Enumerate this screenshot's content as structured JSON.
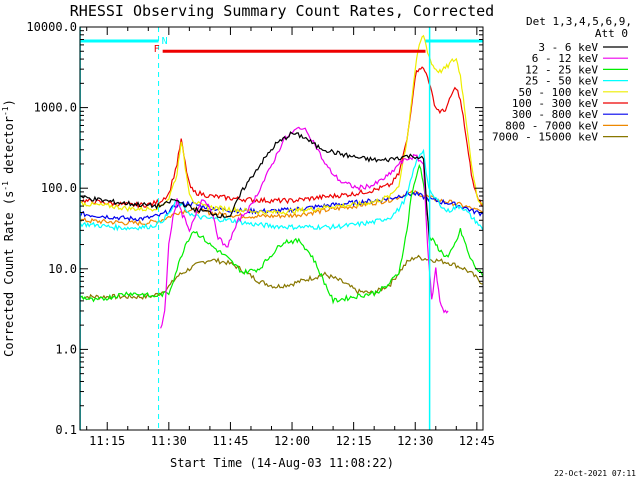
{
  "chart_data": {
    "type": "line",
    "title": "RHESSI Observing Summary Count Rates, Corrected",
    "xlabel": "Start Time (14-Aug-03 11:08:22)",
    "ylabel_prefix": "Corrected Count Rate (s",
    "ylabel_exp1": "-1",
    "ylabel_mid": " detector",
    "ylabel_exp2": "-1",
    "ylabel_suffix": ")",
    "x_range_min": [
      8.37,
      106.5
    ],
    "y_range": [
      0.1,
      10000
    ],
    "y_scale": "log",
    "x_tick_labels": [
      "11:15",
      "11:30",
      "11:45",
      "12:00",
      "12:15",
      "12:30",
      "12:45"
    ],
    "x_tick_values_min": [
      15,
      30,
      45,
      60,
      75,
      90,
      105
    ],
    "y_tick_labels": [
      "0.1",
      "1.0",
      "10.0",
      "100.0",
      "1000.0",
      "10000.0"
    ],
    "y_tick_values": [
      0.1,
      1,
      10,
      100,
      1000,
      10000
    ],
    "legend_header": [
      "Det 1,3,4,5,6,9,",
      "Att 0"
    ],
    "legend_position": "top-right outside plot",
    "timestamp": "22-Oct-2021 07:11",
    "flags": {
      "color": "#00ffff",
      "label_N": "N",
      "label_F": "F",
      "night_segments_min": [
        [
          8.4,
          27.5
        ],
        [
          92.5,
          106.5
        ]
      ],
      "dashed_lines_min": [
        27.5,
        106.5
      ],
      "solid_lines_min": [
        8.4,
        93.5
      ],
      "flare_segment_min": [
        28.5,
        92.5
      ],
      "flare_color": "#ee0000",
      "flare_level": 5000
    },
    "series": [
      {
        "name": "3 - 6 keV",
        "color": "#000000",
        "t": [
          8.5,
          12,
          18,
          24,
          27,
          29,
          31,
          33,
          36,
          40,
          43,
          45,
          48,
          52,
          56,
          60,
          63,
          66,
          70,
          74,
          78,
          82,
          86,
          88,
          90,
          92,
          93.5
        ],
        "v": [
          78,
          73,
          66,
          62,
          60,
          62,
          72,
          66,
          55,
          50,
          45,
          46,
          95,
          190,
          350,
          480,
          430,
          330,
          280,
          250,
          230,
          220,
          240,
          250,
          250,
          230,
          20
        ]
      },
      {
        "name": "6 - 12 keV",
        "color": "#ee00ee",
        "t": [
          28,
          29,
          30,
          31,
          32,
          33,
          34,
          35,
          36,
          38,
          40,
          42,
          44,
          47,
          50,
          54,
          58,
          62,
          64,
          66,
          68,
          70,
          72,
          76,
          80,
          84,
          86,
          88,
          90,
          92,
          93,
          94,
          95,
          96,
          97,
          98
        ],
        "v": [
          1.8,
          3,
          20,
          45,
          70,
          50,
          40,
          28,
          40,
          75,
          60,
          25,
          18,
          40,
          60,
          150,
          400,
          580,
          480,
          320,
          200,
          150,
          120,
          100,
          110,
          150,
          200,
          230,
          250,
          200,
          20,
          4,
          10,
          4,
          3,
          3
        ]
      },
      {
        "name": "12 - 25 keV",
        "color": "#00ee00",
        "t": [
          8.5,
          12,
          16,
          20,
          24,
          26,
          28,
          30,
          32,
          34,
          36,
          38,
          40,
          44,
          48,
          52,
          55,
          58,
          62,
          65,
          70,
          75,
          80,
          83,
          86,
          88,
          89,
          90,
          91,
          92,
          93.5,
          95,
          96,
          97,
          98,
          99,
          100,
          101,
          102,
          103,
          104,
          105,
          106.5
        ],
        "v": [
          4.5,
          4,
          4.5,
          5,
          4.8,
          4.5,
          4.8,
          5,
          10,
          20,
          30,
          25,
          20,
          14,
          9,
          10,
          15,
          22,
          22,
          14,
          4,
          4.5,
          5,
          6,
          9,
          30,
          80,
          120,
          200,
          120,
          25,
          20,
          17,
          15,
          14,
          17,
          22,
          30,
          22,
          15,
          12,
          10,
          8
        ]
      },
      {
        "name": "25 - 50 keV",
        "color": "#00ffff",
        "t": [
          8.5,
          12,
          16,
          20,
          24,
          26,
          28,
          30,
          32,
          34,
          36,
          40,
          45,
          50,
          55,
          60,
          65,
          70,
          75,
          80,
          84,
          86,
          88,
          90,
          92,
          93,
          94,
          95,
          96,
          97,
          98,
          99,
          100,
          101,
          102,
          103,
          104,
          105,
          106.5
        ],
        "v": [
          36,
          35,
          33,
          32,
          33,
          34,
          38,
          48,
          70,
          55,
          45,
          42,
          40,
          36,
          34,
          33,
          33,
          33,
          35,
          38,
          44,
          55,
          80,
          200,
          300,
          120,
          80,
          75,
          65,
          55,
          52,
          55,
          58,
          60,
          55,
          48,
          42,
          38,
          30
        ]
      },
      {
        "name": "50 - 100 keV",
        "color": "#eeee00",
        "t": [
          8.5,
          12,
          16,
          20,
          24,
          26,
          28,
          30,
          32,
          33,
          34,
          35,
          36,
          38,
          40,
          45,
          50,
          55,
          60,
          65,
          70,
          75,
          80,
          84,
          86,
          88,
          90,
          91,
          92,
          93,
          94,
          95,
          96,
          97,
          98,
          99,
          100,
          101,
          102,
          103,
          104,
          105,
          106.5
        ],
        "v": [
          65,
          62,
          60,
          56,
          55,
          56,
          60,
          75,
          150,
          400,
          180,
          90,
          70,
          60,
          58,
          55,
          52,
          50,
          52,
          55,
          60,
          62,
          68,
          80,
          110,
          400,
          3000,
          6000,
          8000,
          5000,
          3500,
          3000,
          2800,
          3000,
          3300,
          3800,
          4000,
          2500,
          1000,
          400,
          150,
          80,
          60
        ]
      },
      {
        "name": "100 - 300 keV",
        "color": "#ee0000",
        "t": [
          8.5,
          12,
          16,
          20,
          24,
          26,
          28,
          30,
          32,
          33,
          34,
          35,
          36,
          38,
          40,
          45,
          50,
          55,
          60,
          65,
          70,
          75,
          80,
          84,
          86,
          88,
          90,
          91,
          92,
          93,
          94,
          95,
          96,
          97,
          98,
          99,
          100,
          101,
          102,
          103,
          104,
          105,
          106.5
        ],
        "v": [
          70,
          68,
          65,
          62,
          62,
          64,
          70,
          85,
          200,
          400,
          200,
          110,
          90,
          85,
          80,
          75,
          72,
          70,
          70,
          75,
          80,
          85,
          95,
          110,
          150,
          400,
          2500,
          3200,
          3000,
          2500,
          1500,
          1000,
          900,
          900,
          1100,
          1500,
          1800,
          1200,
          600,
          250,
          120,
          80,
          60
        ]
      },
      {
        "name": "300 - 800 keV",
        "color": "#0000ee",
        "t": [
          8.5,
          12,
          16,
          20,
          24,
          26,
          28,
          30,
          32,
          35,
          38,
          42,
          46,
          50,
          55,
          60,
          65,
          70,
          75,
          80,
          84,
          86,
          88,
          90,
          92,
          94,
          96,
          98,
          100,
          102,
          104,
          106.5
        ],
        "v": [
          48,
          46,
          44,
          42,
          42,
          44,
          46,
          52,
          62,
          65,
          60,
          55,
          53,
          52,
          52,
          54,
          58,
          62,
          66,
          70,
          75,
          80,
          85,
          85,
          78,
          72,
          68,
          66,
          62,
          58,
          52,
          48
        ]
      },
      {
        "name": "800 - 7000 keV",
        "color": "#ee8800",
        "t": [
          8.5,
          12,
          16,
          20,
          24,
          26,
          28,
          30,
          32,
          35,
          38,
          42,
          46,
          50,
          55,
          60,
          65,
          70,
          75,
          80,
          84,
          86,
          88,
          90,
          92,
          94,
          96,
          98,
          100,
          102,
          104,
          106.5
        ],
        "v": [
          40,
          39,
          38,
          37,
          37,
          38,
          40,
          44,
          50,
          54,
          52,
          48,
          46,
          45,
          45,
          46,
          50,
          55,
          60,
          66,
          72,
          78,
          85,
          88,
          82,
          75,
          70,
          68,
          64,
          60,
          55,
          50
        ]
      },
      {
        "name": "7000 - 15000 keV",
        "color": "#887700",
        "t": [
          8.5,
          12,
          16,
          20,
          24,
          26,
          28,
          30,
          32,
          35,
          38,
          40,
          42,
          44,
          46,
          48,
          52,
          56,
          60,
          64,
          68,
          72,
          76,
          80,
          84,
          86,
          88,
          90,
          92,
          94,
          96,
          98,
          100,
          102,
          104,
          106.5
        ],
        "v": [
          4.5,
          4.5,
          4.5,
          4.5,
          4.5,
          4.6,
          5,
          6,
          8,
          10,
          12,
          13,
          12.5,
          12,
          11,
          9.5,
          7,
          6,
          6.5,
          7.5,
          8.5,
          7,
          5.2,
          5,
          6.5,
          9,
          12,
          14,
          13.5,
          13,
          12.5,
          12,
          11,
          10,
          8.5,
          6.5
        ]
      }
    ]
  }
}
